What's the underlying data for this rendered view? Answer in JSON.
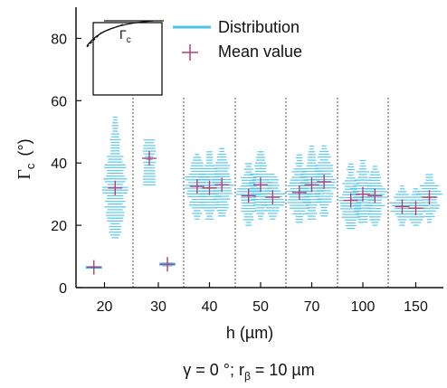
{
  "chart_data": {
    "type": "scatter",
    "xlabel": "h (µm)",
    "ylabel": "Γ",
    "ylabel_sub": "c",
    "ylabel_unit": "(°)",
    "ylim": [
      0,
      90
    ],
    "yticks": [
      0,
      20,
      40,
      60,
      80
    ],
    "xtick_labels": [
      "20",
      "30",
      "40",
      "50",
      "70",
      "100",
      "150"
    ],
    "caption": {
      "main": "γ = 0 °; r",
      "sub": "β",
      "tail": " = 10 µm"
    },
    "legend": {
      "position": "top-right",
      "items": [
        {
          "label": "Distribution",
          "marker": "line",
          "color": "#4cc3e6"
        },
        {
          "label": "Mean value",
          "marker": "plus",
          "color": "#b0407a"
        }
      ]
    },
    "inset": {
      "label": "Γ",
      "label_sub": "c"
    },
    "colors": {
      "distribution": "#4cc3e6",
      "mean": "#b0407a",
      "axis": "#111111",
      "separator": "#555555"
    },
    "groups": [
      {
        "h": "20",
        "series": [
          {
            "mean": 6.5,
            "min": 6.5,
            "max": 7,
            "spread": "narrow"
          },
          {
            "mean": 32,
            "min": 16,
            "max": 55,
            "spread": "wide"
          }
        ]
      },
      {
        "h": "30",
        "series": [
          {
            "mean": 41.5,
            "min": 33,
            "max": 48,
            "spread": "narrow"
          },
          {
            "mean": 7.5,
            "min": 7,
            "max": 8,
            "spread": "narrow"
          }
        ]
      },
      {
        "h": "40",
        "series": [
          {
            "mean": 32.5,
            "min": 22,
            "max": 43,
            "spread": "wide"
          },
          {
            "mean": 32,
            "min": 22,
            "max": 44,
            "spread": "wide"
          },
          {
            "mean": 33,
            "min": 23,
            "max": 45,
            "spread": "wide"
          }
        ]
      },
      {
        "h": "50",
        "series": [
          {
            "mean": 29.5,
            "min": 20,
            "max": 40,
            "spread": "wide"
          },
          {
            "mean": 33,
            "min": 22,
            "max": 44,
            "spread": "wide"
          },
          {
            "mean": 29,
            "min": 22,
            "max": 37,
            "spread": "wide"
          }
        ]
      },
      {
        "h": "70",
        "series": [
          {
            "mean": 30.5,
            "min": 21,
            "max": 43,
            "spread": "wide"
          },
          {
            "mean": 33,
            "min": 22,
            "max": 46,
            "spread": "wide"
          },
          {
            "mean": 34,
            "min": 23,
            "max": 46,
            "spread": "wide"
          }
        ]
      },
      {
        "h": "100",
        "series": [
          {
            "mean": 28,
            "min": 19,
            "max": 40,
            "spread": "wide"
          },
          {
            "mean": 30,
            "min": 21,
            "max": 41,
            "spread": "wide"
          },
          {
            "mean": 29.5,
            "min": 20,
            "max": 39,
            "spread": "wide"
          }
        ]
      },
      {
        "h": "150",
        "series": [
          {
            "mean": 26,
            "min": 20,
            "max": 33,
            "spread": "wide"
          },
          {
            "mean": 25.5,
            "min": 20,
            "max": 32,
            "spread": "wide"
          },
          {
            "mean": 29,
            "min": 21,
            "max": 37,
            "spread": "wide"
          }
        ]
      }
    ]
  }
}
